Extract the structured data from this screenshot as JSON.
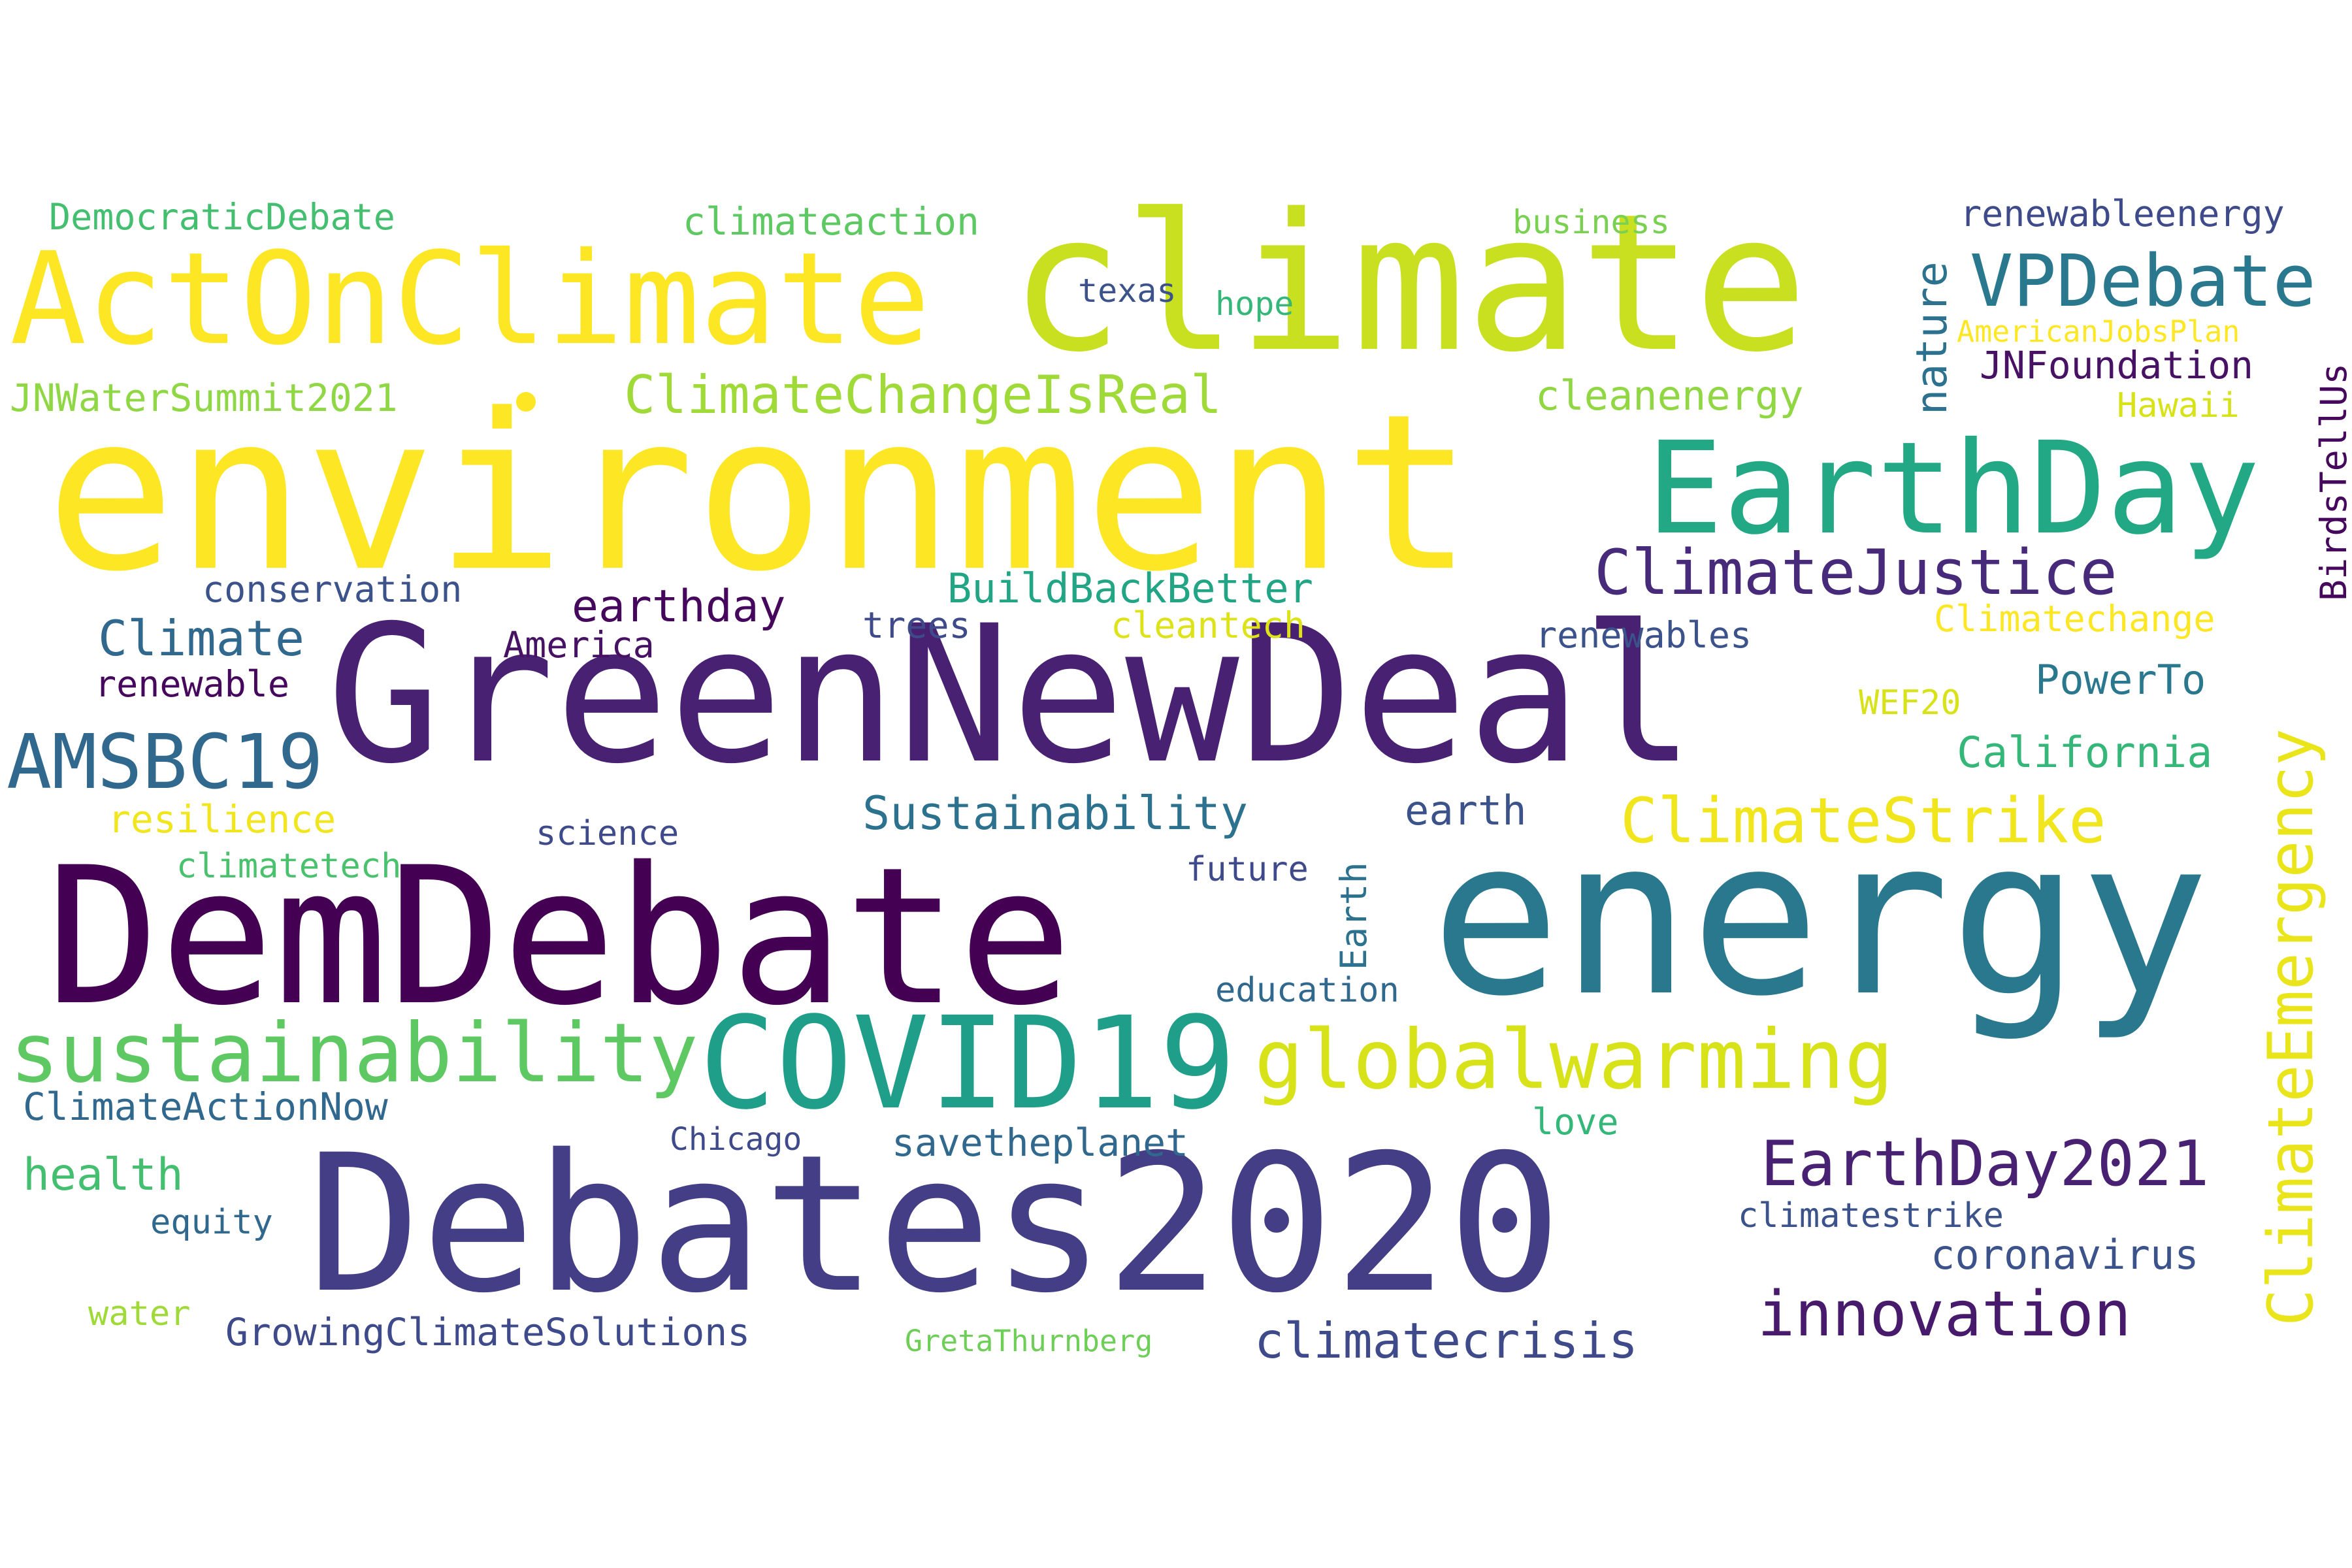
{
  "words": [
    "climate",
    "environment",
    "GreenNewDeal",
    "DemDebate",
    "energy",
    "Debates2020",
    "ActOnClimate",
    "EarthDay",
    "COVID19",
    "globalwarming",
    "sustainability",
    "VPDebate",
    "ClimateJustice",
    "AMSBC19",
    "ClimateStrike",
    "EarthDay2021",
    "innovation",
    "ClimateEmergency",
    "ClimateChangeIsReal",
    "BuildBackBetter",
    "Sustainability",
    "climatecrisis",
    "earthday",
    "Climate",
    "California",
    "nature",
    "coronavirus",
    "JNFoundation",
    "PowerTo",
    "cleanenergy",
    "JNWaterSummit2021",
    "climateaction",
    "renewableenergy",
    "DemocraticDebate",
    "conservation",
    "America",
    "renewables",
    "ClimateActionNow",
    "health",
    "savetheplanet",
    "GrowingClimateSolutions",
    "earth",
    "resilience",
    "Earth",
    "BirdsTellUs",
    "trees",
    "cleantech",
    "Climatechange",
    "renewable",
    "science",
    "climatetech",
    "future",
    "education",
    "love",
    "Chicago",
    "climatestrike",
    "equity",
    "water",
    "GretaThurnberg",
    "texas",
    "hope",
    "business",
    "AmericanJobsPlan",
    "Hawaii",
    "WEF20"
  ],
  "colors": {
    "dark_purple": "#440154",
    "indigo": "#472a7a",
    "blue_purple": "#3e4a89",
    "slate_blue": "#31688e",
    "teal": "#26828e",
    "sea_green": "#1f9e89",
    "green": "#35b779",
    "light_green": "#6ece58",
    "yellow_green": "#b5de2b",
    "yellow": "#fde725"
  }
}
